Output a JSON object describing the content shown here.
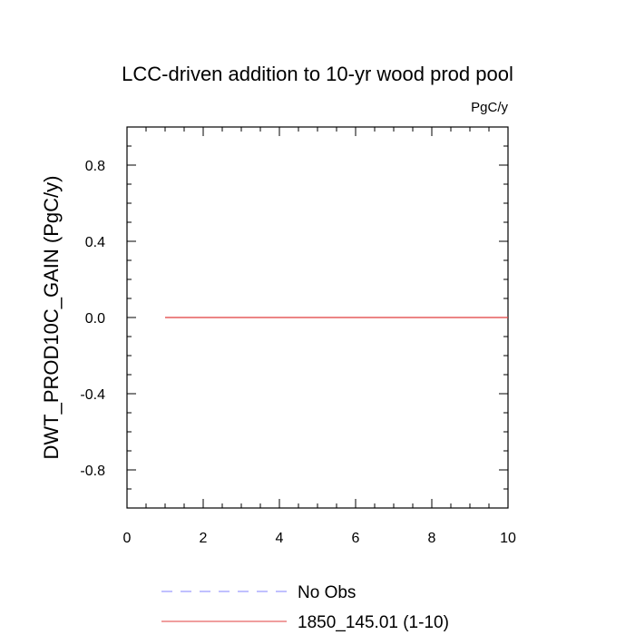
{
  "chart_data": {
    "type": "line",
    "title": "LCC-driven addition to 10-yr wood prod pool",
    "units_label": "PgC/y",
    "xlabel": "",
    "ylabel": "DWT_PROD10C_GAIN  (PgC/y)",
    "xlim": [
      0,
      10
    ],
    "ylim": [
      -1,
      1
    ],
    "x_ticks": [
      0,
      2,
      4,
      6,
      8,
      10
    ],
    "x_tick_labels": [
      "0",
      "2",
      "4",
      "6",
      "8",
      "10"
    ],
    "y_ticks": [
      -0.8,
      -0.4,
      0.0,
      0.4,
      0.8
    ],
    "y_tick_labels": [
      "-0.8",
      "-0.4",
      "0.0",
      "0.4",
      "0.8"
    ],
    "grid": false,
    "legend_position": "bottom",
    "series": [
      {
        "name": "No Obs",
        "color": "#8080ff",
        "dash": "dashed",
        "x": [],
        "y": []
      },
      {
        "name": "1850_145.01 (1-10)",
        "color": "#e03c3c",
        "dash": "solid",
        "x": [
          1,
          2,
          3,
          4,
          5,
          6,
          7,
          8,
          9,
          10
        ],
        "y": [
          0,
          0,
          0,
          0,
          0,
          0,
          0,
          0,
          0,
          0
        ]
      }
    ]
  }
}
